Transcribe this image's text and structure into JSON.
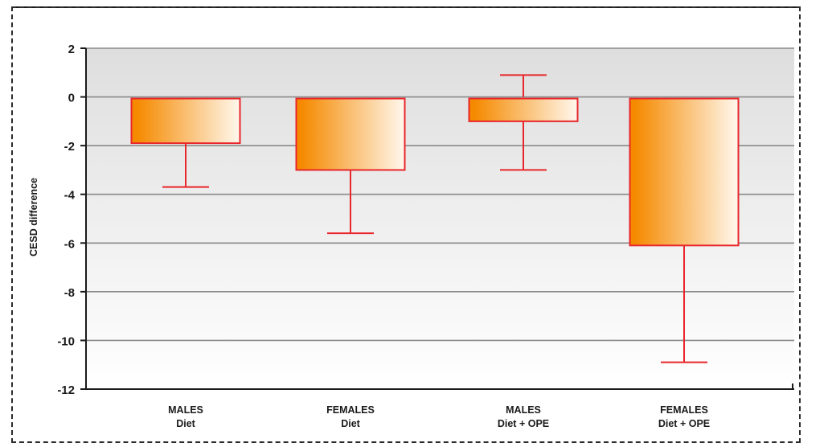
{
  "chart_data": {
    "type": "bar",
    "title": "",
    "xlabel": "",
    "ylabel": "CESD difference",
    "ylim": [
      -12,
      2
    ],
    "yticks": [
      "2",
      "0",
      "-2",
      "-4",
      "-6",
      "-8",
      "-10",
      "-12"
    ],
    "grid": true,
    "categories": [
      {
        "line1": "MALES",
        "line2": "Diet"
      },
      {
        "line1": "FEMALES",
        "line2": "Diet"
      },
      {
        "line1": "MALES",
        "line2": "Diet + OPE"
      },
      {
        "line1": "FEMALES",
        "line2": "Diet + OPE"
      }
    ],
    "values": [
      -1.9,
      -3.0,
      -1.0,
      -6.1
    ],
    "error_low": [
      -3.7,
      -5.6,
      -3.0,
      -10.9
    ],
    "error_high": [
      null,
      null,
      0.9,
      null
    ]
  },
  "colors": {
    "bar_stroke": "#e8262b",
    "bar_gradient_start": "#f58a00",
    "bar_gradient_end": "#fff8ee",
    "error_bar": "#e8262b",
    "plot_band_top": "#dedede",
    "plot_band_bottom": "#ffffff",
    "gridline": "#8a8a8a",
    "axis": "#1a1a1a"
  }
}
